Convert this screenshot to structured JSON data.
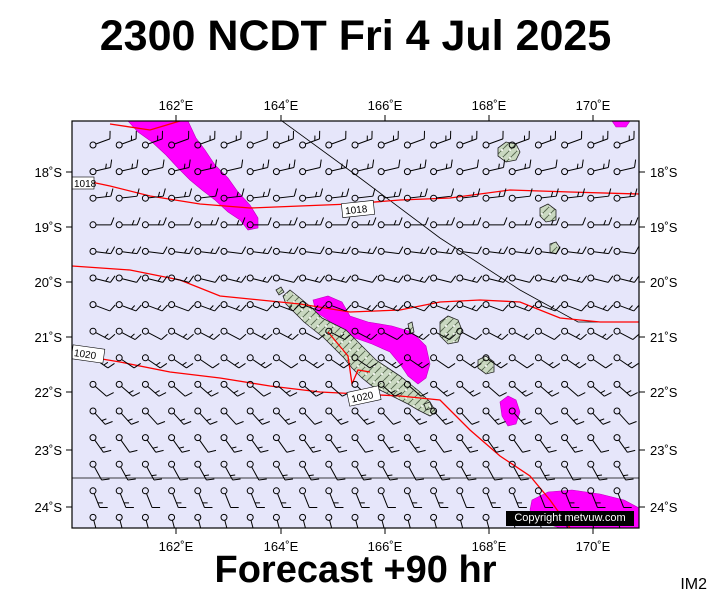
{
  "title": "2300 NCDT Fri 4 Jul 2025",
  "subtitle": "Forecast +90 hr",
  "image_tag": "IM2",
  "copyright": "Copyright metvuw.com",
  "colors": {
    "ocean": "#e6e6fa",
    "land": "#c9d8c0",
    "rain": "#ff00ff",
    "isobar": "#ff0000",
    "wind": "#000000"
  },
  "longitude_labels": [
    "162˚E",
    "164˚E",
    "166˚E",
    "168˚E",
    "170˚E"
  ],
  "latitude_labels": [
    "18˚S",
    "19˚S",
    "20˚S",
    "21˚S",
    "22˚S",
    "23˚S",
    "24˚S"
  ],
  "isobar_labels": [
    "1018",
    "1018",
    "1020",
    "1020"
  ]
}
